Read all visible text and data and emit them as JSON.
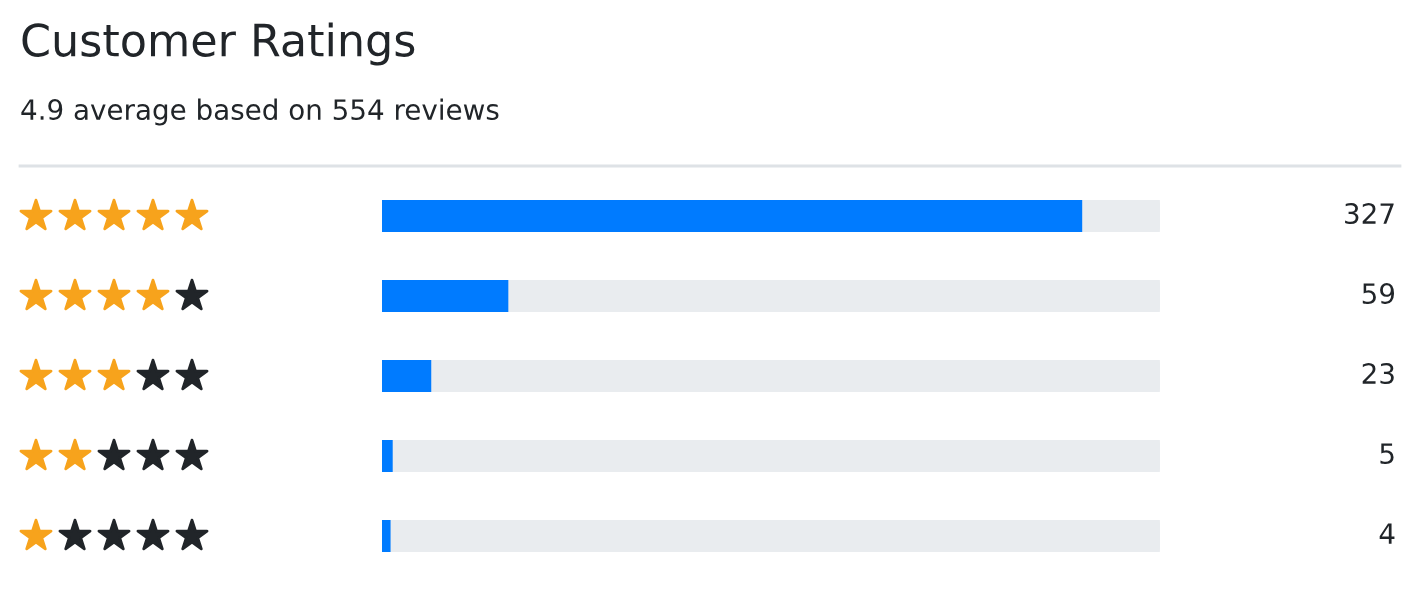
{
  "chart_data": {
    "type": "bar",
    "orientation": "horizontal",
    "title": "Customer Ratings",
    "subtitle": "4.9 average based on 554 reviews",
    "categories": [
      null,
      null,
      null,
      null,
      null
    ],
    "values": [
      327,
      59,
      23,
      5,
      4
    ],
    "data_labels": true,
    "color": "#007bff",
    "grid": false,
    "legend": false
  }
}
